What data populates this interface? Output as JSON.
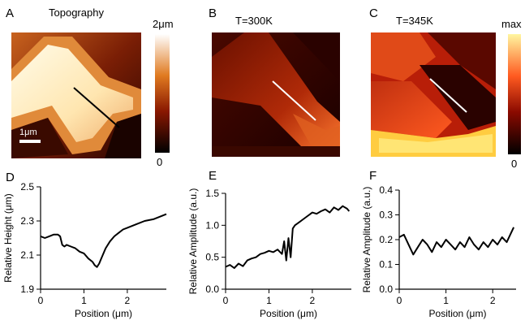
{
  "figure": {
    "panels": {
      "A": {
        "letter": "A",
        "title": "Topography",
        "scalebar": "1μm",
        "colorbar_top": "2μm",
        "colorbar_bottom": "0"
      },
      "B": {
        "letter": "B",
        "title": "T=300K"
      },
      "C": {
        "letter": "C",
        "title": "T=345K",
        "colorbar_top": "max",
        "colorbar_bottom": "0"
      }
    },
    "colors": {
      "line": "#000000",
      "map_dark": "#1a0000",
      "map_mid": "#c23a10",
      "map_bright": "#fff3b0"
    }
  },
  "chart_data": [
    {
      "panel": "D",
      "type": "line",
      "xlabel": "Position (μm)",
      "ylabel": "Relative Height (μm)",
      "xlim": [
        0,
        2.9
      ],
      "ylim": [
        1.9,
        2.5
      ],
      "xticks": [
        "0",
        "1",
        "2"
      ],
      "yticks": [
        "1.9",
        "2.1",
        "2.3",
        "2.5"
      ],
      "series": [
        {
          "x": [
            0,
            0.1,
            0.2,
            0.3,
            0.4,
            0.45,
            0.5,
            0.55,
            0.6,
            0.7,
            0.8,
            0.9,
            1.0,
            1.1,
            1.2,
            1.25,
            1.3,
            1.35,
            1.4,
            1.5,
            1.6,
            1.7,
            1.8,
            1.9,
            2.0,
            2.2,
            2.4,
            2.6,
            2.8,
            2.9
          ],
          "y": [
            2.21,
            2.2,
            2.21,
            2.22,
            2.22,
            2.21,
            2.16,
            2.15,
            2.16,
            2.15,
            2.14,
            2.12,
            2.11,
            2.08,
            2.06,
            2.04,
            2.03,
            2.05,
            2.08,
            2.14,
            2.18,
            2.21,
            2.23,
            2.25,
            2.26,
            2.28,
            2.3,
            2.31,
            2.33,
            2.34
          ]
        }
      ]
    },
    {
      "panel": "E",
      "type": "line",
      "xlabel": "Position (μm)",
      "ylabel": "Relative Amplitude (a.u.)",
      "xlim": [
        0,
        2.9
      ],
      "ylim": [
        0,
        1.5
      ],
      "xticks": [
        "0",
        "1",
        "2"
      ],
      "yticks": [
        "0.0",
        "0.5",
        "1.0",
        "1.5"
      ],
      "series": [
        {
          "x": [
            0,
            0.1,
            0.2,
            0.3,
            0.4,
            0.5,
            0.6,
            0.7,
            0.8,
            0.9,
            1.0,
            1.1,
            1.2,
            1.3,
            1.35,
            1.4,
            1.45,
            1.5,
            1.55,
            1.6,
            1.7,
            1.8,
            1.9,
            2.0,
            2.1,
            2.2,
            2.3,
            2.4,
            2.5,
            2.6,
            2.7,
            2.8,
            2.85
          ],
          "y": [
            0.35,
            0.38,
            0.33,
            0.4,
            0.36,
            0.45,
            0.48,
            0.5,
            0.55,
            0.57,
            0.6,
            0.58,
            0.62,
            0.55,
            0.75,
            0.45,
            0.8,
            0.5,
            0.95,
            1.0,
            1.05,
            1.1,
            1.15,
            1.2,
            1.18,
            1.22,
            1.25,
            1.2,
            1.28,
            1.24,
            1.3,
            1.26,
            1.22
          ]
        }
      ]
    },
    {
      "panel": "F",
      "type": "line",
      "xlabel": "Position (μm)",
      "ylabel": "Relative Amplitude (a.u.)",
      "xlim": [
        0,
        2.5
      ],
      "ylim": [
        0,
        0.4
      ],
      "xticks": [
        "0",
        "1",
        "2"
      ],
      "yticks": [
        "0.0",
        "0.1",
        "0.2",
        "0.3",
        "0.4"
      ],
      "series": [
        {
          "x": [
            0,
            0.1,
            0.2,
            0.3,
            0.4,
            0.5,
            0.6,
            0.7,
            0.8,
            0.9,
            1.0,
            1.1,
            1.2,
            1.3,
            1.4,
            1.5,
            1.6,
            1.7,
            1.8,
            1.9,
            2.0,
            2.1,
            2.2,
            2.3,
            2.4,
            2.45
          ],
          "y": [
            0.21,
            0.22,
            0.18,
            0.14,
            0.17,
            0.2,
            0.18,
            0.15,
            0.19,
            0.17,
            0.2,
            0.18,
            0.16,
            0.19,
            0.17,
            0.21,
            0.18,
            0.16,
            0.19,
            0.17,
            0.2,
            0.18,
            0.21,
            0.19,
            0.23,
            0.25
          ]
        }
      ]
    }
  ]
}
